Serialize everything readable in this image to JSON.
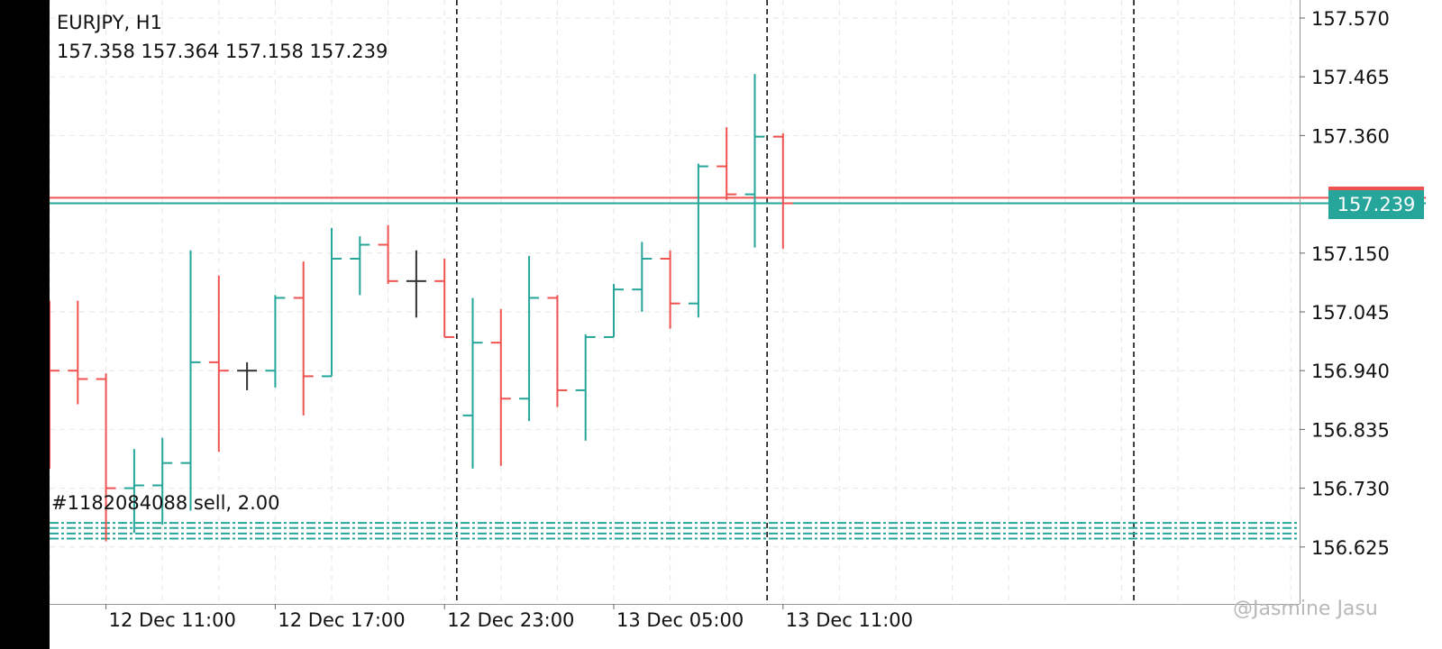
{
  "header": {
    "symbol_timeframe": "EURJPY, H1",
    "ohlc": "157.358 157.364 157.158 157.239"
  },
  "order": {
    "label": "#1182084088 sell, 2.00"
  },
  "watermark": "@Jasmine Jasu",
  "colors": {
    "up": "#26a69a",
    "down": "#ef5350",
    "neutral": "#333333",
    "grid": "#e6e6e6",
    "separator": "#000000",
    "background": "#ffffff"
  },
  "chart_data": {
    "type": "ohlc-bar",
    "ylim": [
      156.52,
      157.6
    ],
    "y_ticks": [
      "157.570",
      "157.465",
      "157.360",
      "157.150",
      "157.045",
      "156.940",
      "156.835",
      "156.730",
      "156.625"
    ],
    "y_tick_values": [
      157.57,
      157.465,
      157.36,
      157.15,
      157.045,
      156.94,
      156.835,
      156.73,
      156.625
    ],
    "x_labels": [
      {
        "text": "12 Dec 11:00",
        "bar": 2
      },
      {
        "text": "12 Dec 17:00",
        "bar": 8
      },
      {
        "text": "12 Dec 23:00",
        "bar": 14
      },
      {
        "text": "13 Dec 05:00",
        "bar": 20
      },
      {
        "text": "13 Dec 11:00",
        "bar": 26
      }
    ],
    "day_separators_bar": [
      14.5,
      25.5,
      38.5
    ],
    "current_price": {
      "bid": 157.239,
      "ask": 157.249,
      "label": "157.239"
    },
    "order_lines": [
      156.668,
      156.659,
      156.649,
      156.64
    ],
    "bars": [
      {
        "o": 157.065,
        "h": 157.065,
        "l": 156.765,
        "c": 156.94
      },
      {
        "o": 156.94,
        "h": 157.065,
        "l": 156.88,
        "c": 156.925
      },
      {
        "o": 156.925,
        "h": 156.935,
        "l": 156.635,
        "c": 156.73
      },
      {
        "o": 156.73,
        "h": 156.8,
        "l": 156.65,
        "c": 156.735
      },
      {
        "o": 156.735,
        "h": 156.82,
        "l": 156.665,
        "c": 156.775
      },
      {
        "o": 156.775,
        "h": 157.155,
        "l": 156.69,
        "c": 156.955
      },
      {
        "o": 156.955,
        "h": 157.11,
        "l": 156.795,
        "c": 156.94
      },
      {
        "o": 156.94,
        "h": 156.955,
        "l": 156.905,
        "c": 156.94
      },
      {
        "o": 156.94,
        "h": 157.075,
        "l": 156.91,
        "c": 157.07
      },
      {
        "o": 157.07,
        "h": 157.135,
        "l": 156.86,
        "c": 156.93
      },
      {
        "o": 156.93,
        "h": 157.195,
        "l": 156.93,
        "c": 157.14
      },
      {
        "o": 157.14,
        "h": 157.18,
        "l": 157.075,
        "c": 157.165
      },
      {
        "o": 157.165,
        "h": 157.2,
        "l": 157.095,
        "c": 157.1
      },
      {
        "o": 157.1,
        "h": 157.155,
        "l": 157.035,
        "c": 157.1
      },
      {
        "o": 157.1,
        "h": 157.14,
        "l": 157.0,
        "c": 157.0
      },
      {
        "o": 156.86,
        "h": 157.07,
        "l": 156.765,
        "c": 156.99
      },
      {
        "o": 156.99,
        "h": 157.05,
        "l": 156.77,
        "c": 156.89
      },
      {
        "o": 156.89,
        "h": 157.145,
        "l": 156.85,
        "c": 157.07
      },
      {
        "o": 157.07,
        "h": 157.075,
        "l": 156.875,
        "c": 156.905
      },
      {
        "o": 156.905,
        "h": 157.005,
        "l": 156.815,
        "c": 157.0
      },
      {
        "o": 157.0,
        "h": 157.095,
        "l": 157.0,
        "c": 157.085
      },
      {
        "o": 157.085,
        "h": 157.17,
        "l": 157.045,
        "c": 157.14
      },
      {
        "o": 157.14,
        "h": 157.155,
        "l": 157.015,
        "c": 157.06
      },
      {
        "o": 157.06,
        "h": 157.31,
        "l": 157.035,
        "c": 157.305
      },
      {
        "o": 157.305,
        "h": 157.375,
        "l": 157.245,
        "c": 157.255
      },
      {
        "o": 157.255,
        "h": 157.47,
        "l": 157.16,
        "c": 157.358
      },
      {
        "o": 157.358,
        "h": 157.364,
        "l": 157.158,
        "c": 157.239
      }
    ]
  }
}
